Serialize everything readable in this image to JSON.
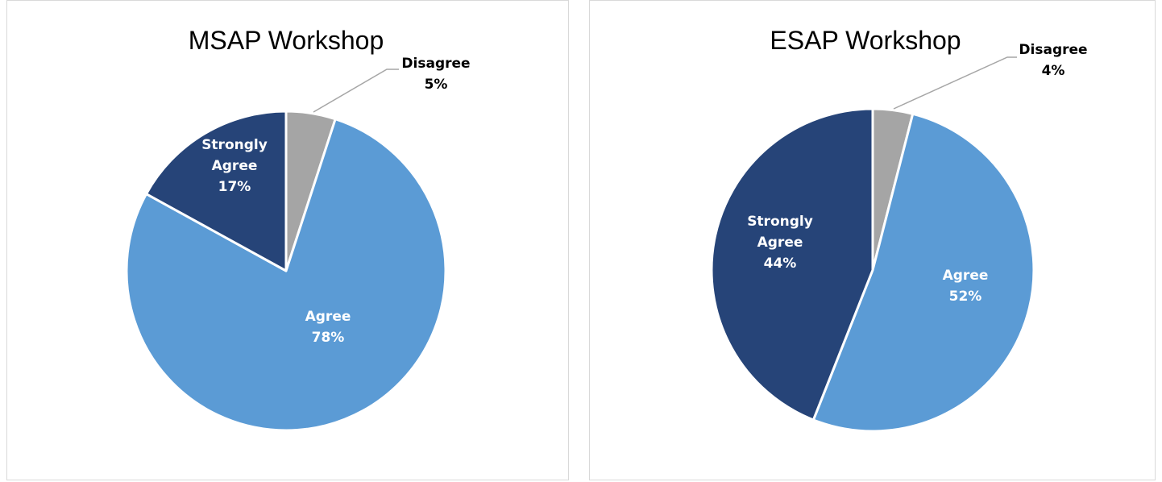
{
  "chart_data": [
    {
      "type": "pie",
      "title": "MSAP Workshop",
      "slices": [
        {
          "name": "Disagree",
          "value": 5,
          "label_lines": [
            "Disagree"
          ],
          "pct_label": "5%",
          "color": "#a5a5a5",
          "label_color": "#000000",
          "label_position": "outside-callout"
        },
        {
          "name": "Agree",
          "value": 78,
          "label_lines": [
            "Agree"
          ],
          "pct_label": "78%",
          "color": "#5b9bd5",
          "label_color": "#ffffff",
          "label_position": "inside"
        },
        {
          "name": "Strongly Agree",
          "value": 17,
          "label_lines": [
            "Strongly",
            "Agree"
          ],
          "pct_label": "17%",
          "color": "#264478",
          "label_color": "#ffffff",
          "label_position": "inside"
        }
      ],
      "start_angle": "12 o'clock",
      "direction": "clockwise",
      "legend": "none"
    },
    {
      "type": "pie",
      "title": "ESAP Workshop",
      "slices": [
        {
          "name": "Disagree",
          "value": 4,
          "label_lines": [
            "Disagree"
          ],
          "pct_label": "4%",
          "color": "#a5a5a5",
          "label_color": "#000000",
          "label_position": "outside-callout"
        },
        {
          "name": "Agree",
          "value": 52,
          "label_lines": [
            "Agree"
          ],
          "pct_label": "52%",
          "color": "#5b9bd5",
          "label_color": "#ffffff",
          "label_position": "inside"
        },
        {
          "name": "Strongly Agree",
          "value": 44,
          "label_lines": [
            "Strongly",
            "Agree"
          ],
          "pct_label": "44%",
          "color": "#264478",
          "label_color": "#ffffff",
          "label_position": "inside"
        }
      ],
      "start_angle": "12 o'clock",
      "direction": "clockwise",
      "legend": "none"
    }
  ]
}
